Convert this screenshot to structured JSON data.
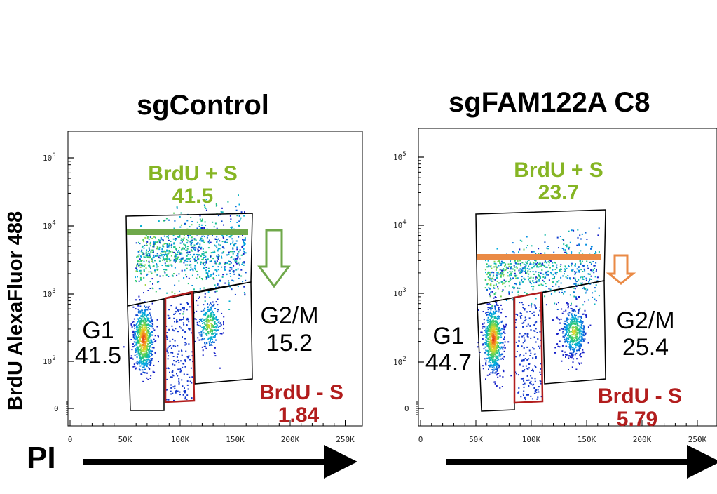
{
  "ylabel": "BrdU AlexaFluor 488",
  "xlabel": "PI",
  "chart_data": [
    {
      "type": "scatter",
      "title": "sgControl",
      "xlabel": "PI",
      "ylabel": "BrdU AlexaFluor 488",
      "x_ticks": [
        "0",
        "50K",
        "100K",
        "150K",
        "200K",
        "250K"
      ],
      "y_ticks": [
        {
          "label": "0",
          "sup": ""
        },
        {
          "label": "10",
          "sup": "2"
        },
        {
          "label": "10",
          "sup": "3"
        },
        {
          "label": "10",
          "sup": "4"
        },
        {
          "label": "10",
          "sup": "5"
        }
      ],
      "gates": [
        {
          "name": "BrdU + S",
          "value": "41.5"
        },
        {
          "name": "G1",
          "value": "41.5"
        },
        {
          "name": "G2/M",
          "value": "15.2"
        },
        {
          "name": "BrdU - S",
          "value": "1.84"
        }
      ],
      "threshold_color": "#6fa84a"
    },
    {
      "type": "scatter",
      "title": "sgFAM122A C8",
      "xlabel": "PI",
      "ylabel": "",
      "x_ticks": [
        "0",
        "50K",
        "100K",
        "150K",
        "200K",
        "250K"
      ],
      "y_ticks": [
        {
          "label": "0",
          "sup": ""
        },
        {
          "label": "10",
          "sup": "2"
        },
        {
          "label": "10",
          "sup": "3"
        },
        {
          "label": "10",
          "sup": "4"
        },
        {
          "label": "10",
          "sup": "5"
        }
      ],
      "gates": [
        {
          "name": "BrdU + S",
          "value": "23.7"
        },
        {
          "name": "G1",
          "value": "44.7"
        },
        {
          "name": "G2/M",
          "value": "25.4"
        },
        {
          "name": "BrdU - S",
          "value": "5.79"
        }
      ],
      "threshold_color": "#ea8a45"
    }
  ]
}
